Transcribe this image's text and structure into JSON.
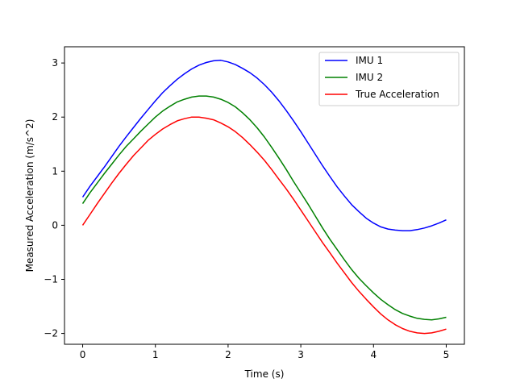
{
  "chart_data": {
    "type": "line",
    "title": "",
    "xlabel": "Time (s)",
    "ylabel": "Measured Acceleration (m/s^2)",
    "xlim": [
      -0.25,
      5.25
    ],
    "ylim": [
      -2.2,
      3.3
    ],
    "xticks": [
      0,
      1,
      2,
      3,
      4,
      5
    ],
    "xtick_labels": [
      "0",
      "1",
      "2",
      "3",
      "4",
      "5"
    ],
    "yticks": [
      -2,
      -1,
      0,
      1,
      2,
      3
    ],
    "ytick_labels": [
      "−2",
      "−1",
      "0",
      "1",
      "2",
      "3"
    ],
    "grid": false,
    "legend_position": "top-right",
    "series": [
      {
        "name": "IMU 1",
        "color": "#0000ff",
        "x": [
          0,
          0.1,
          0.2,
          0.3,
          0.4,
          0.5,
          0.6,
          0.7,
          0.8,
          0.9,
          1.0,
          1.1,
          1.2,
          1.3,
          1.4,
          1.5,
          1.6,
          1.7,
          1.8,
          1.9,
          2.0,
          2.1,
          2.2,
          2.3,
          2.4,
          2.5,
          2.6,
          2.7,
          2.8,
          2.9,
          3.0,
          3.1,
          3.2,
          3.3,
          3.4,
          3.5,
          3.6,
          3.7,
          3.8,
          3.9,
          4.0,
          4.1,
          4.2,
          4.3,
          4.4,
          4.5,
          4.6,
          4.7,
          4.8,
          4.9,
          5.0
        ],
        "y": [
          0.52,
          0.72,
          0.9,
          1.08,
          1.27,
          1.46,
          1.64,
          1.81,
          1.98,
          2.14,
          2.3,
          2.45,
          2.58,
          2.7,
          2.8,
          2.89,
          2.96,
          3.01,
          3.04,
          3.05,
          3.02,
          2.97,
          2.9,
          2.82,
          2.72,
          2.6,
          2.46,
          2.3,
          2.12,
          1.93,
          1.73,
          1.52,
          1.31,
          1.1,
          0.9,
          0.71,
          0.54,
          0.38,
          0.25,
          0.13,
          0.04,
          -0.03,
          -0.07,
          -0.09,
          -0.1,
          -0.1,
          -0.08,
          -0.05,
          -0.01,
          0.04,
          0.1
        ]
      },
      {
        "name": "IMU 2",
        "color": "#008000",
        "x": [
          0,
          0.1,
          0.2,
          0.3,
          0.4,
          0.5,
          0.6,
          0.7,
          0.8,
          0.9,
          1.0,
          1.1,
          1.2,
          1.3,
          1.4,
          1.5,
          1.6,
          1.7,
          1.8,
          1.9,
          2.0,
          2.1,
          2.2,
          2.3,
          2.4,
          2.5,
          2.6,
          2.7,
          2.8,
          2.9,
          3.0,
          3.1,
          3.2,
          3.3,
          3.4,
          3.5,
          3.6,
          3.7,
          3.8,
          3.9,
          4.0,
          4.1,
          4.2,
          4.3,
          4.4,
          4.5,
          4.6,
          4.7,
          4.8,
          4.9,
          5.0
        ],
        "y": [
          0.4,
          0.6,
          0.78,
          0.96,
          1.13,
          1.3,
          1.46,
          1.6,
          1.74,
          1.87,
          2.0,
          2.11,
          2.2,
          2.28,
          2.33,
          2.37,
          2.39,
          2.39,
          2.37,
          2.33,
          2.27,
          2.19,
          2.08,
          1.95,
          1.8,
          1.63,
          1.44,
          1.24,
          1.03,
          0.81,
          0.6,
          0.39,
          0.17,
          -0.05,
          -0.26,
          -0.45,
          -0.64,
          -0.82,
          -0.98,
          -1.12,
          -1.25,
          -1.37,
          -1.47,
          -1.56,
          -1.63,
          -1.68,
          -1.72,
          -1.74,
          -1.75,
          -1.73,
          -1.7
        ]
      },
      {
        "name": "True Acceleration",
        "color": "#ff0000",
        "x": [
          0,
          0.1,
          0.2,
          0.3,
          0.4,
          0.5,
          0.6,
          0.7,
          0.8,
          0.9,
          1.0,
          1.1,
          1.2,
          1.3,
          1.4,
          1.5,
          1.6,
          1.7,
          1.8,
          1.9,
          2.0,
          2.1,
          2.2,
          2.3,
          2.4,
          2.5,
          2.6,
          2.7,
          2.8,
          2.9,
          3.0,
          3.1,
          3.2,
          3.3,
          3.4,
          3.5,
          3.6,
          3.7,
          3.8,
          3.9,
          4.0,
          4.1,
          4.2,
          4.3,
          4.4,
          4.5,
          4.6,
          4.7,
          4.8,
          4.9,
          5.0
        ],
        "y": [
          0.0,
          0.2,
          0.4,
          0.59,
          0.78,
          0.96,
          1.13,
          1.29,
          1.43,
          1.57,
          1.68,
          1.78,
          1.86,
          1.93,
          1.97,
          2.0,
          2.0,
          1.98,
          1.95,
          1.89,
          1.82,
          1.73,
          1.62,
          1.49,
          1.35,
          1.2,
          1.03,
          0.85,
          0.67,
          0.48,
          0.28,
          0.08,
          -0.12,
          -0.32,
          -0.51,
          -0.7,
          -0.88,
          -1.06,
          -1.22,
          -1.37,
          -1.51,
          -1.64,
          -1.75,
          -1.84,
          -1.91,
          -1.96,
          -1.99,
          -2.0,
          -1.99,
          -1.96,
          -1.92
        ]
      }
    ]
  }
}
